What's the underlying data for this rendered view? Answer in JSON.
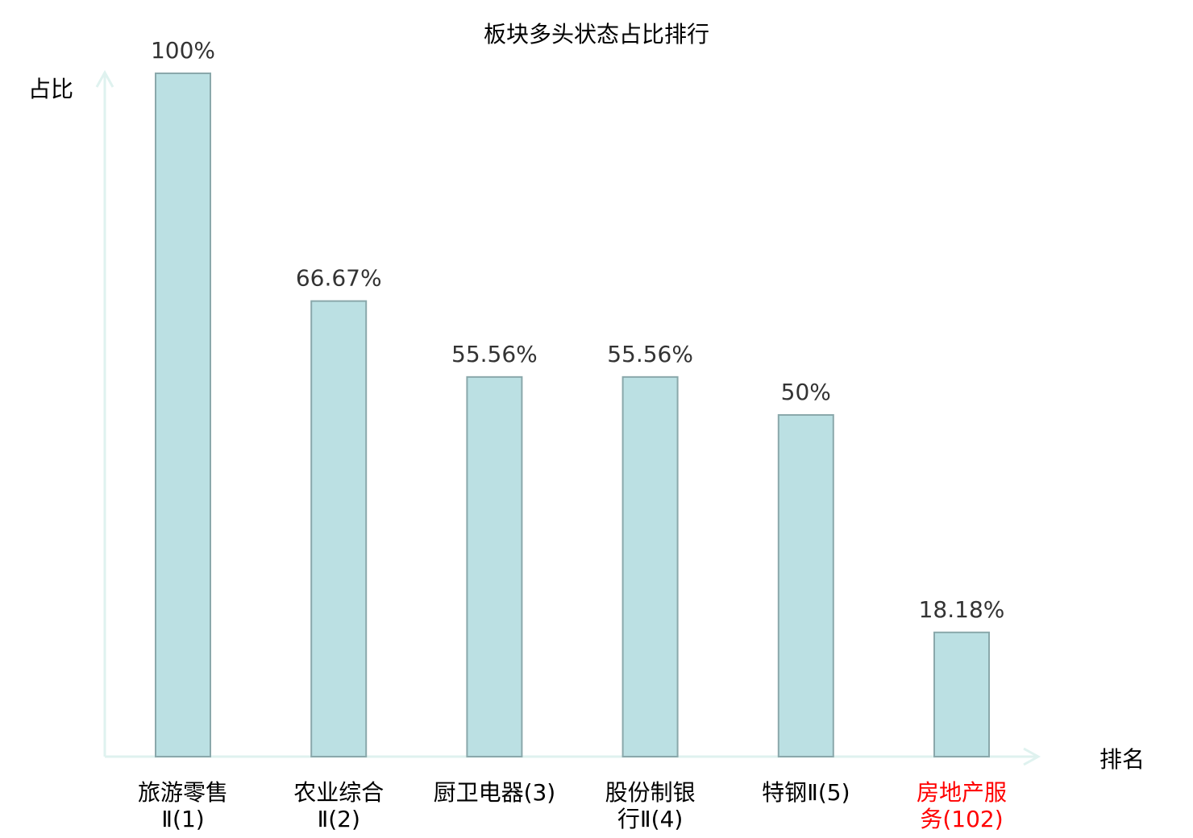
{
  "chart_data": {
    "type": "bar",
    "title": "板块多头状态占比排行",
    "xlabel": "排名",
    "ylabel": "占比",
    "ylim": [
      0,
      100
    ],
    "grid": false,
    "categories": [
      [
        "旅游零售",
        "Ⅱ(1)"
      ],
      [
        "农业综合",
        "Ⅱ(2)"
      ],
      [
        "厨卫电器(3)"
      ],
      [
        "股份制银",
        "行Ⅱ(4)"
      ],
      [
        "特钢Ⅱ(5)"
      ],
      [
        "房地产服",
        "务(102)"
      ]
    ],
    "values": [
      100,
      66.67,
      55.56,
      55.56,
      50,
      18.18
    ],
    "data_labels": [
      "100%",
      "66.67%",
      "55.56%",
      "55.56%",
      "50%",
      "18.18%"
    ],
    "highlight_index": 5,
    "colors": {
      "bar_fill": "#bbe0e3",
      "bar_stroke": "#8aa8ab",
      "axis": "#dff2ef",
      "label": "#000000",
      "highlight_label": "#ff0000",
      "data_label": "#333333"
    }
  }
}
